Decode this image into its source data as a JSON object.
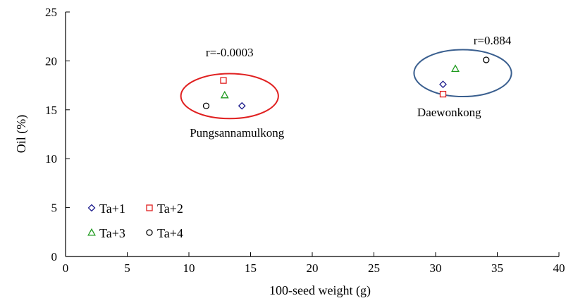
{
  "chart_data": {
    "type": "scatter",
    "xlabel": "100-seed weight (g)",
    "ylabel": "Oil (%)",
    "xlim": [
      0,
      40
    ],
    "ylim": [
      0,
      25
    ],
    "xticks": [
      0,
      5,
      10,
      15,
      20,
      25,
      30,
      35,
      40
    ],
    "yticks": [
      0,
      5,
      10,
      15,
      20,
      25
    ],
    "grid": false,
    "legend_position": "bottom-left",
    "series": [
      {
        "name": "Ta+1",
        "marker": "diamond",
        "color": "#1c1c8c",
        "points": [
          [
            14.3,
            15.4
          ],
          [
            30.6,
            17.6
          ]
        ]
      },
      {
        "name": "Ta+2",
        "marker": "square",
        "color": "#e02020",
        "points": [
          [
            12.8,
            18.0
          ],
          [
            30.6,
            16.6
          ]
        ]
      },
      {
        "name": "Ta+3",
        "marker": "triangle",
        "color": "#1e9a1e",
        "points": [
          [
            12.9,
            16.5
          ],
          [
            31.6,
            19.2
          ]
        ]
      },
      {
        "name": "Ta+4",
        "marker": "circle",
        "color": "#000000",
        "points": [
          [
            11.4,
            15.4
          ],
          [
            34.1,
            20.1
          ]
        ]
      }
    ],
    "groups": [
      {
        "label": "Pungsannamulkong",
        "r_label": "r=-0.0003",
        "ellipse_color": "#e02020",
        "center": [
          13.3,
          16.4
        ],
        "radii": [
          3.95,
          2.3
        ]
      },
      {
        "label": "Daewonkong",
        "r_label": "r=0.884",
        "ellipse_color": "#3a5f8f",
        "center": [
          32.2,
          18.75
        ],
        "radii": [
          3.95,
          2.4
        ]
      }
    ]
  }
}
